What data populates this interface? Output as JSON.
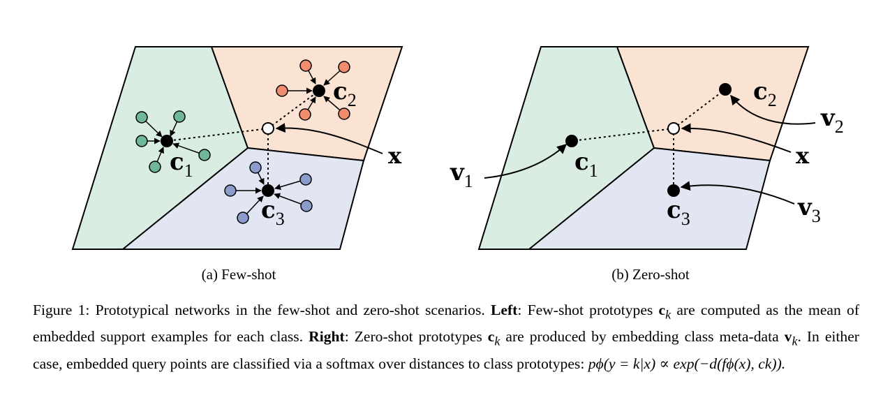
{
  "panels": {
    "a": {
      "caption": "(a) Few-shot",
      "labels": {
        "c1": "c",
        "c1_sub": "1",
        "c2": "c",
        "c2_sub": "2",
        "c3": "c",
        "c3_sub": "3",
        "x": "x"
      }
    },
    "b": {
      "caption": "(b) Zero-shot",
      "labels": {
        "c1": "c",
        "c1_sub": "1",
        "c2": "c",
        "c2_sub": "2",
        "c3": "c",
        "c3_sub": "3",
        "x": "x",
        "v1": "v",
        "v1_sub": "1",
        "v2": "v",
        "v2_sub": "2",
        "v3": "v",
        "v3_sub": "3"
      }
    }
  },
  "colors": {
    "region_green": "#d9ede3",
    "region_orange": "#fbe3d3",
    "region_blue": "#e2e6f2",
    "green_points": "#6fb69a",
    "orange_points": "#f08d6e",
    "blue_points": "#8b9ccb"
  },
  "caption": {
    "p1": "Figure 1: Prototypical networks in the few-shot and zero-shot scenarios.",
    "left_label": "Left",
    "p2": ": Few-shot prototypes",
    "ck1_base": "c",
    "ck1_sub": "k",
    "p3": "are computed as the mean of embedded support examples for each class.",
    "right_label": "Right",
    "p4": ": Zero-shot prototypes",
    "ck2_base": "c",
    "ck2_sub": "k",
    "p5": "are produced by embedding class meta-data",
    "vk_base": "v",
    "vk_sub": "k",
    "p6": ". In either case, embedded query points are classified via a softmax over distances to class prototypes:",
    "formula": "pϕ(y = k|x) ∝ exp(−d(fϕ(x), ck))."
  }
}
